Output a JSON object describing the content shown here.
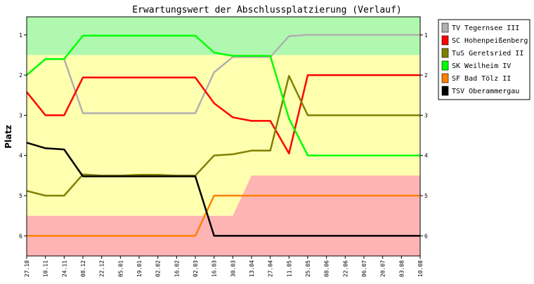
{
  "chart_data": {
    "type": "line",
    "title": "Erwartungswert der Abschlussplatzierung (Verlauf)",
    "ylabel": "Platz",
    "xlabel": "",
    "ylim": [
      0.55,
      6.5
    ],
    "y_ticks": [
      1,
      2,
      3,
      4,
      5,
      6
    ],
    "y_inverted": true,
    "grid": false,
    "legend_position": "right",
    "categories": [
      "27.10",
      "10.11",
      "24.11",
      "08.12",
      "22.12",
      "05.01",
      "19.01",
      "02.02",
      "16.02",
      "02.03",
      "16.03",
      "30.03",
      "13.04",
      "27.04",
      "11.05",
      "25.05",
      "08.06",
      "22.06",
      "06.07",
      "20.07",
      "03.08",
      "10.08"
    ],
    "bands": [
      {
        "name": "promotion",
        "color": "#b0f8b0",
        "from": 0.55,
        "to": 1.5
      },
      {
        "name": "middle",
        "color": "#ffffb0",
        "from": 1.5,
        "to": 5.5
      },
      {
        "name": "relegation",
        "color": "#ffb4b4",
        "from": 5.5,
        "to": 6.5
      }
    ],
    "relegation_steps": [
      {
        "from_x": 0,
        "to_x": 11,
        "top": 5.5
      },
      {
        "from_x": 11,
        "to_x": 12,
        "top": 5.5,
        "top_end": 4.5
      },
      {
        "from_x": 12,
        "to_x": 21,
        "top": 4.5
      }
    ],
    "series": [
      {
        "name": "TV Tegernsee III",
        "color": "#b0b0b0",
        "values": [
          2.0,
          1.6,
          1.6,
          2.95,
          2.95,
          2.95,
          2.95,
          2.95,
          2.95,
          2.95,
          1.93,
          1.55,
          1.55,
          1.55,
          1.03,
          1.0,
          1.0,
          1.0,
          1.0,
          1.0,
          1.0,
          1.0
        ]
      },
      {
        "name": "SC Hohenpeißenberg",
        "color": "#ff0000",
        "values": [
          2.42,
          3.0,
          3.0,
          2.06,
          2.06,
          2.06,
          2.06,
          2.06,
          2.06,
          2.06,
          2.7,
          3.05,
          3.14,
          3.14,
          3.95,
          2.0,
          2.0,
          2.0,
          2.0,
          2.0,
          2.0,
          2.0
        ]
      },
      {
        "name": "TuS Geretsried II",
        "color": "#808000",
        "values": [
          4.88,
          5.0,
          5.0,
          4.47,
          4.5,
          4.5,
          4.48,
          4.48,
          4.5,
          4.5,
          4.0,
          3.97,
          3.88,
          3.88,
          2.02,
          3.0,
          3.0,
          3.0,
          3.0,
          3.0,
          3.0,
          3.0
        ]
      },
      {
        "name": "SK Weilheim IV",
        "color": "#00ff00",
        "values": [
          2.0,
          1.6,
          1.6,
          1.02,
          1.02,
          1.02,
          1.02,
          1.02,
          1.02,
          1.02,
          1.44,
          1.52,
          1.52,
          1.52,
          3.08,
          4.0,
          4.0,
          4.0,
          4.0,
          4.0,
          4.0,
          4.0
        ]
      },
      {
        "name": "SF Bad Tölz II",
        "color": "#ff8000",
        "values": [
          6.0,
          6.0,
          6.0,
          6.0,
          6.0,
          6.0,
          6.0,
          6.0,
          6.0,
          6.0,
          5.0,
          5.0,
          5.0,
          5.0,
          5.0,
          5.0,
          5.0,
          5.0,
          5.0,
          5.0,
          5.0,
          5.0
        ]
      },
      {
        "name": "TSV Oberammergau",
        "color": "#000000",
        "values": [
          3.68,
          3.82,
          3.85,
          4.52,
          4.52,
          4.52,
          4.52,
          4.52,
          4.52,
          4.52,
          6.0,
          6.0,
          6.0,
          6.0,
          6.0,
          6.0,
          6.0,
          6.0,
          6.0,
          6.0,
          6.0,
          6.0
        ]
      }
    ]
  }
}
